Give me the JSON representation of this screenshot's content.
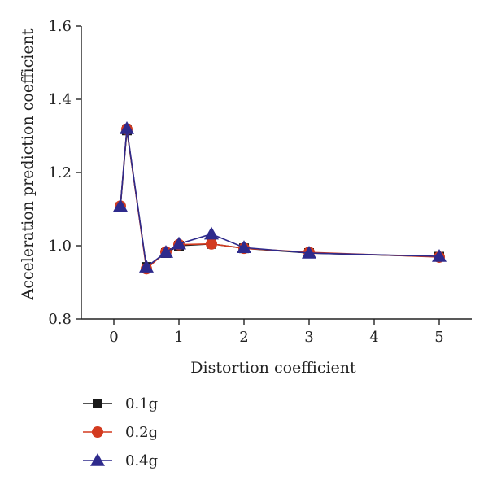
{
  "chart_data": {
    "type": "line",
    "xlabel": "Distortion coefficient",
    "ylabel": "Acceleration prediction coefficient",
    "xlim": [
      -0.5,
      5.5
    ],
    "ylim": [
      0.8,
      1.6
    ],
    "xticks": [
      0,
      1,
      2,
      3,
      4,
      5
    ],
    "yticks": [
      0.8,
      1.0,
      1.2,
      1.4,
      1.6
    ],
    "xtick_labels": [
      "0",
      "1",
      "2",
      "3",
      "4",
      "5"
    ],
    "ytick_labels": [
      "0.8",
      "1.0",
      "1.2",
      "1.4",
      "1.6"
    ],
    "grid": false,
    "legend_position": "bottom-left",
    "x": [
      0.1,
      0.2,
      0.5,
      0.8,
      1.0,
      1.5,
      2.0,
      3.0,
      5.0
    ],
    "series": [
      {
        "name": "0.1g",
        "marker": "square",
        "color": "#1a1a1a",
        "values": [
          1.105,
          1.315,
          0.942,
          0.98,
          1.0,
          1.005,
          0.993,
          0.98,
          0.97
        ]
      },
      {
        "name": "0.2g",
        "marker": "circle",
        "color": "#d33a1f",
        "values": [
          1.108,
          1.318,
          0.937,
          0.983,
          1.003,
          1.005,
          0.993,
          0.982,
          0.969
        ]
      },
      {
        "name": "0.4g",
        "marker": "triangle",
        "color": "#2e2a8c",
        "values": [
          1.108,
          1.32,
          0.942,
          0.982,
          1.005,
          1.032,
          0.995,
          0.98,
          0.971
        ]
      }
    ]
  }
}
